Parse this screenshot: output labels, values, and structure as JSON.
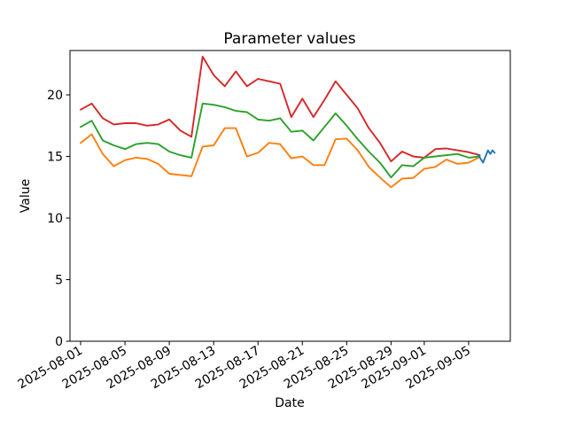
{
  "figure": {
    "background": "#ffffff",
    "plot_background": "#ffffff",
    "spine_color": "#000000"
  },
  "chart_data": {
    "type": "line",
    "title": "Parameter values",
    "xlabel": "Date",
    "ylabel": "Value",
    "grid": false,
    "legend": "none",
    "x_unit": "days since 2025-08-01",
    "xlim": [
      -0.96,
      38.76
    ],
    "ylim": [
      0,
      23.6
    ],
    "y_ticks": [
      0,
      5,
      10,
      15,
      20
    ],
    "y_tick_labels": [
      "0",
      "5",
      "10",
      "15",
      "20"
    ],
    "x_tick_days": [
      0,
      4,
      8,
      12,
      16,
      20,
      24,
      28,
      31,
      35
    ],
    "x_tick_labels": [
      "2025-08-01",
      "2025-08-05",
      "2025-08-09",
      "2025-08-13",
      "2025-08-17",
      "2025-08-21",
      "2025-08-25",
      "2025-08-29",
      "2025-09-01",
      "2025-09-05"
    ],
    "x_tick_rotation_deg": 30,
    "series": [
      {
        "name": "red-series",
        "color": "#d62728",
        "start_day": 0,
        "values": [
          18.8,
          19.3,
          18.1,
          17.6,
          17.7,
          17.7,
          17.5,
          17.6,
          18.0,
          17.1,
          16.6,
          23.1,
          21.6,
          20.7,
          21.9,
          20.7,
          21.3,
          21.1,
          20.9,
          18.2,
          19.7,
          18.2,
          19.6,
          21.1,
          20.0,
          18.9,
          17.3,
          16.1,
          14.6,
          15.4,
          15.0,
          14.9,
          15.6,
          15.65,
          15.5,
          15.35,
          15.1
        ]
      },
      {
        "name": "green-series",
        "color": "#2ca02c",
        "start_day": 0,
        "values": [
          17.4,
          17.9,
          16.3,
          15.9,
          15.6,
          16.0,
          16.1,
          16.0,
          15.4,
          15.1,
          14.9,
          19.3,
          19.2,
          19.0,
          18.7,
          18.6,
          18.0,
          17.9,
          18.1,
          17.0,
          17.1,
          16.3,
          17.4,
          18.5,
          17.5,
          16.4,
          15.4,
          14.5,
          13.3,
          14.3,
          14.2,
          14.9,
          15.0,
          15.1,
          15.2,
          14.9,
          15.0
        ]
      },
      {
        "name": "orange-series",
        "color": "#ff7f0e",
        "start_day": 0,
        "values": [
          16.1,
          16.8,
          15.2,
          14.2,
          14.7,
          14.9,
          14.8,
          14.4,
          13.6,
          13.5,
          13.4,
          15.8,
          15.9,
          17.3,
          17.3,
          15.0,
          15.3,
          16.1,
          16.0,
          14.85,
          15.0,
          14.3,
          14.3,
          16.4,
          16.45,
          15.5,
          14.15,
          13.3,
          12.5,
          13.2,
          13.25,
          14.0,
          14.15,
          14.75,
          14.4,
          14.5,
          14.95
        ]
      },
      {
        "name": "blue-series",
        "color": "#1f77b4",
        "days": [
          35.85,
          36.3,
          36.75,
          36.95,
          37.15,
          37.35
        ],
        "values": [
          15.15,
          14.5,
          15.5,
          15.2,
          15.5,
          15.3
        ]
      }
    ]
  }
}
